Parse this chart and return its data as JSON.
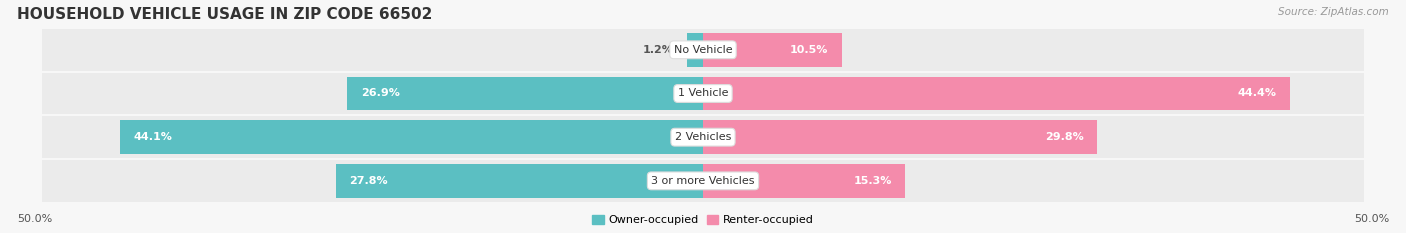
{
  "title": "HOUSEHOLD VEHICLE USAGE IN ZIP CODE 66502",
  "source": "Source: ZipAtlas.com",
  "categories": [
    "No Vehicle",
    "1 Vehicle",
    "2 Vehicles",
    "3 or more Vehicles"
  ],
  "owner_values": [
    1.2,
    26.9,
    44.1,
    27.8
  ],
  "renter_values": [
    10.5,
    44.4,
    29.8,
    15.3
  ],
  "owner_color": "#5bbfc2",
  "renter_color": "#f48bab",
  "row_bg_color": "#ebebeb",
  "fig_bg_color": "#f7f7f7",
  "owner_label": "Owner-occupied",
  "renter_label": "Renter-occupied",
  "axis_min": -50.0,
  "axis_max": 50.0,
  "axis_tick_labels": [
    "50.0%",
    "50.0%"
  ],
  "title_fontsize": 11,
  "source_fontsize": 7.5,
  "bar_label_fontsize": 8,
  "cat_label_fontsize": 8,
  "tick_fontsize": 8,
  "legend_fontsize": 8
}
